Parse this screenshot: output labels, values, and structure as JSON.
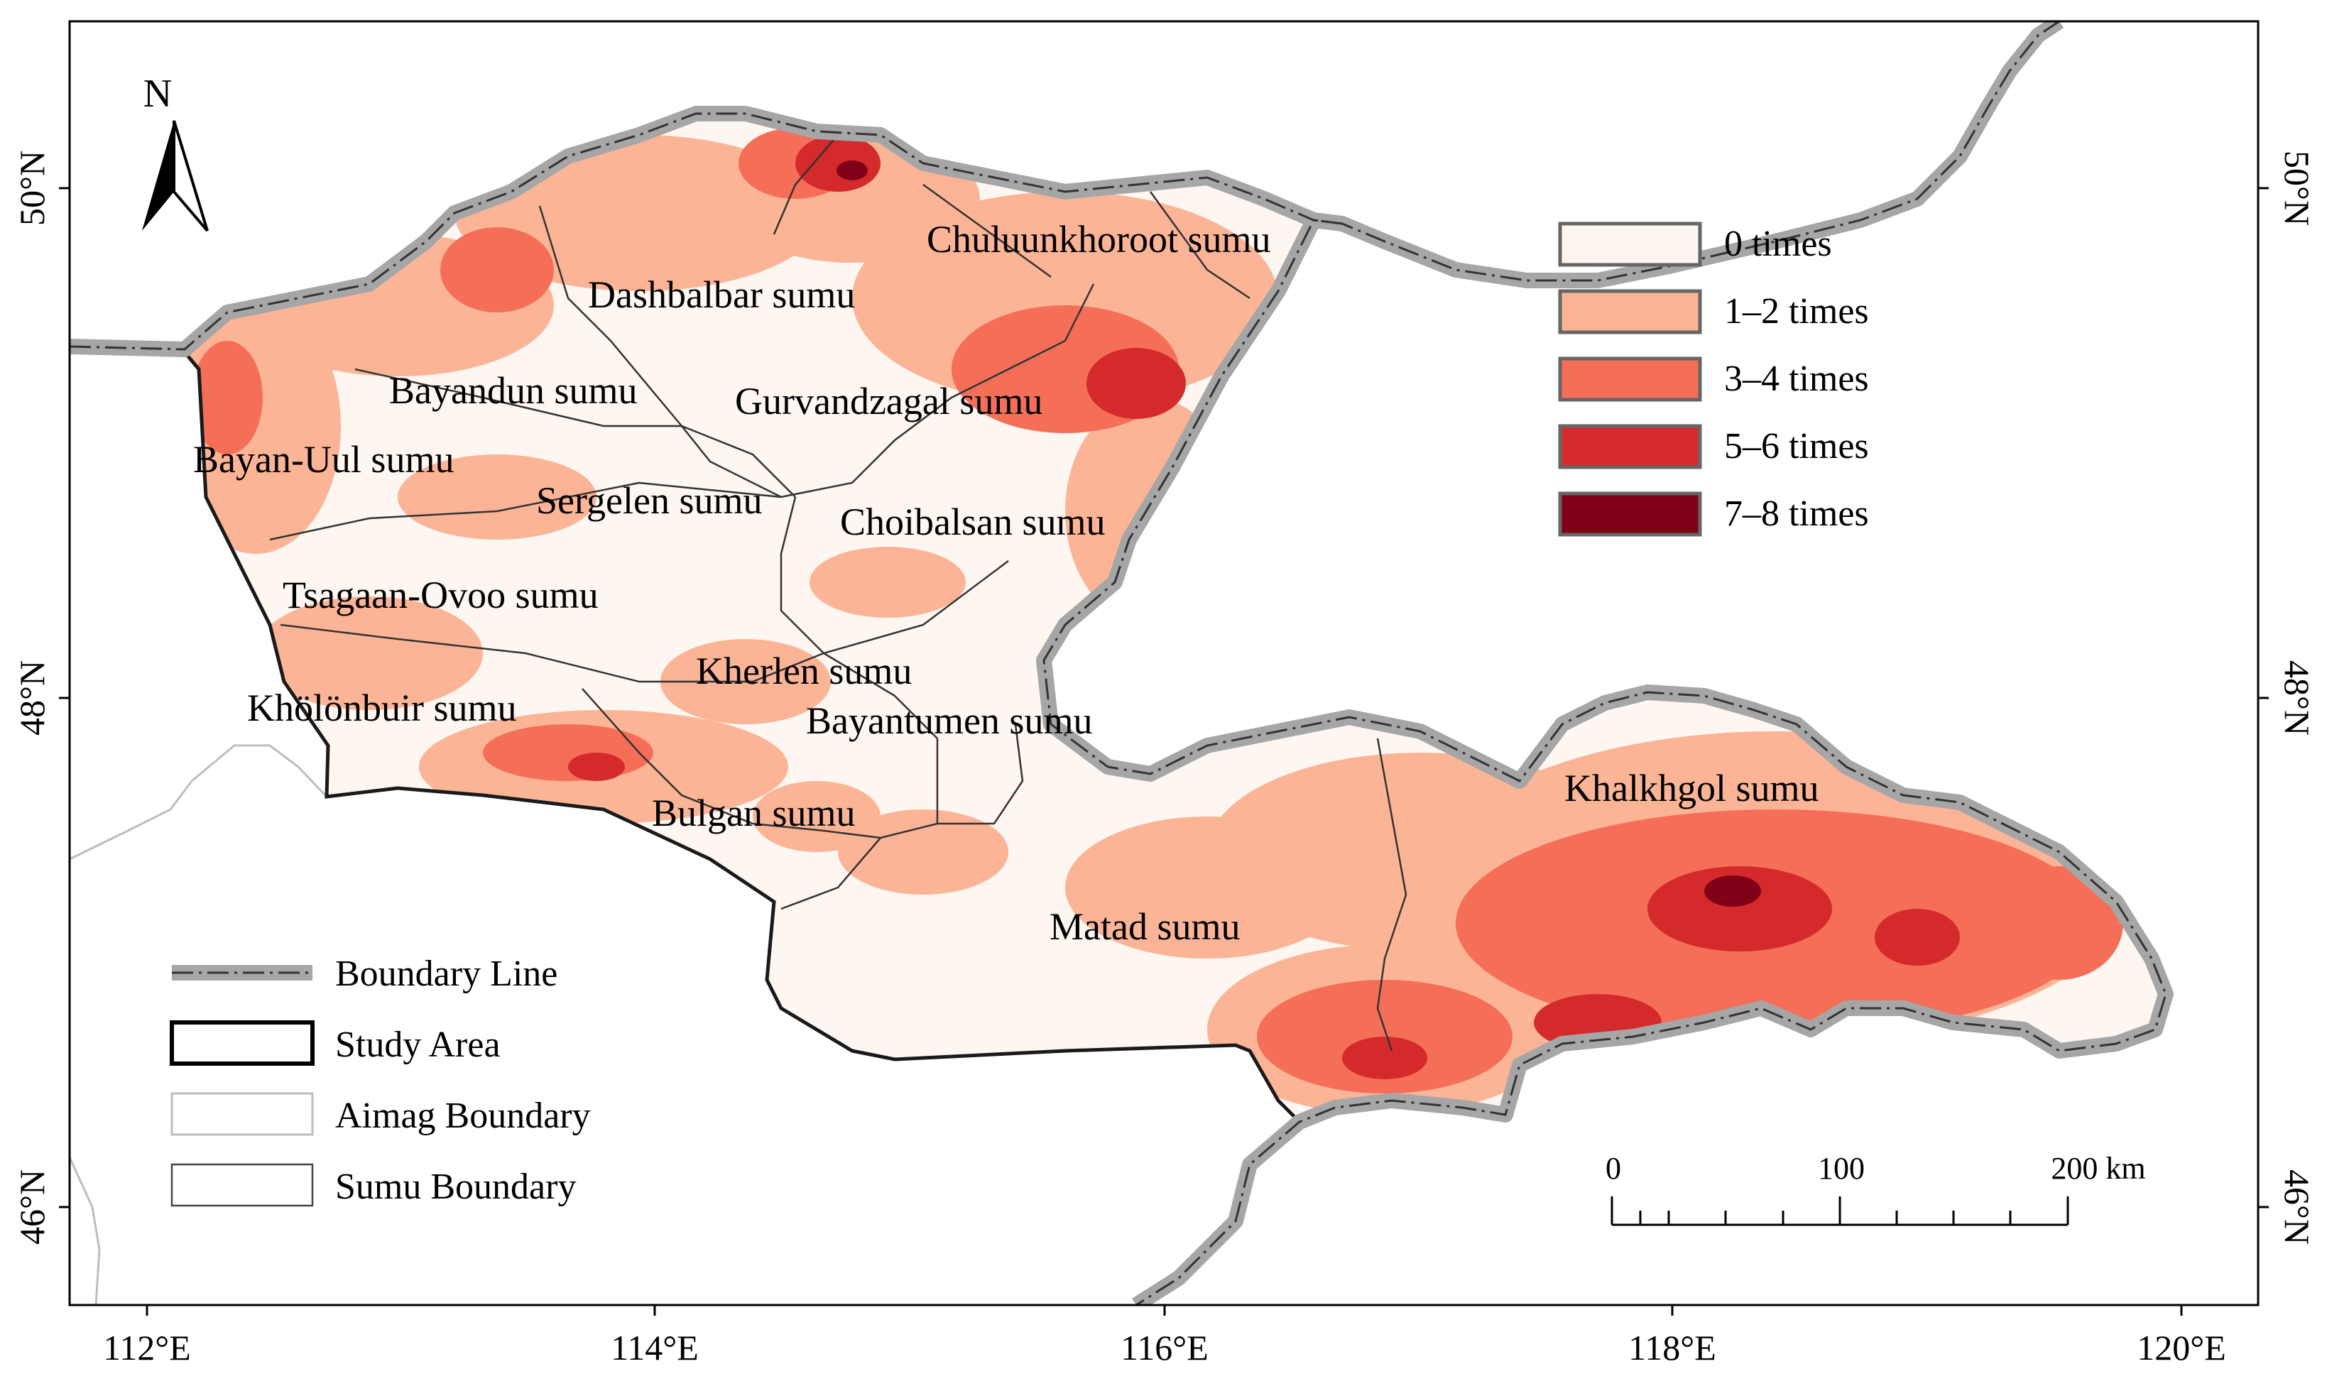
{
  "north_arrow": {
    "label": "N",
    "icon": "north-arrow-icon"
  },
  "sumu_labels": [
    "Chuluunkhoroot sumu",
    "Dashbalbar sumu",
    "Bayandun sumu",
    "Gurvandzagal sumu",
    "Bayan-Uul sumu",
    "Sergelen sumu",
    "Choibalsan sumu",
    "Tsagaan-Ovoo sumu",
    "Kherlen sumu",
    "Khölönbuir sumu",
    "Bayantumen sumu",
    "Bulgan sumu",
    "Khalkhgol sumu",
    "Matad sumu"
  ],
  "frequency_legend": [
    {
      "label": "0 times",
      "color": "#fdf6f1"
    },
    {
      "label": "1–2 times",
      "color": "#fbb496"
    },
    {
      "label": "3–4 times",
      "color": "#f56e58"
    },
    {
      "label": "5–6 times",
      "color": "#d42a2c"
    },
    {
      "label": "7–8 times",
      "color": "#800018"
    }
  ],
  "line_legend": [
    {
      "label": "Boundary Line",
      "icon": "boundary-line-icon"
    },
    {
      "label": "Study Area",
      "icon": "study-area-icon"
    },
    {
      "label": "Aimag Boundary",
      "icon": "aimag-boundary-icon"
    },
    {
      "label": "Sumu Boundary",
      "icon": "sumu-boundary-icon"
    }
  ],
  "axes": {
    "x_ticks": [
      "112°E",
      "114°E",
      "116°E",
      "118°E",
      "120°E"
    ],
    "y_ticks_left": [
      "50°N",
      "48°N",
      "46°N"
    ],
    "y_ticks_right": [
      "50°N",
      "48°N",
      "46°N"
    ]
  },
  "scale_bar": {
    "labels": [
      "0",
      "100",
      "200 km"
    ]
  },
  "colors": {
    "border_gray": "#a6a6a6",
    "study_outline": "#1a1a1a",
    "aimag_line": "#bdbdbd",
    "frame": "#000000"
  }
}
